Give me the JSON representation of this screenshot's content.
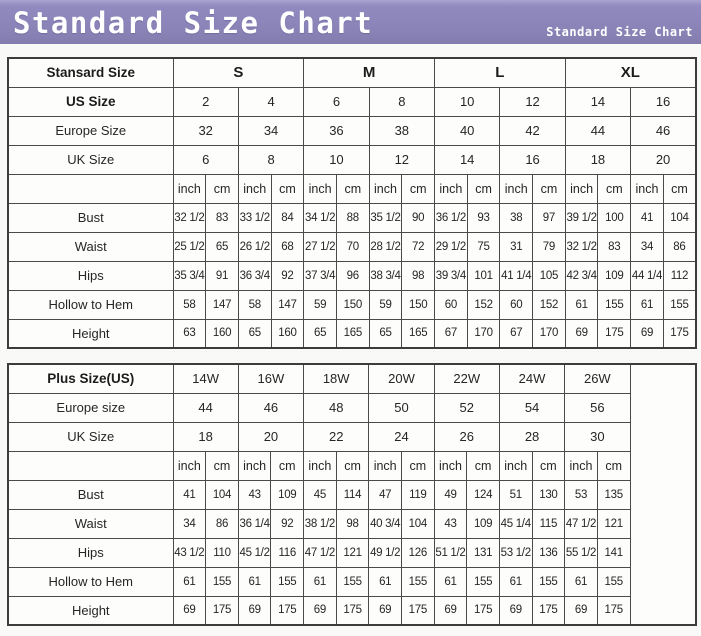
{
  "header": {
    "title": "Standard Size Chart",
    "subtitle": "Standard Size Chart"
  },
  "colors": {
    "header_bar": "#8a84b8",
    "table_border": "#3c3c3c",
    "cell_background": "#fdfdfc",
    "text": "#262626"
  },
  "tables": [
    {
      "id": "standard-size-table",
      "unit_cols": 16,
      "label_col_width": 165,
      "trailing_empty_col": false,
      "empty_col_width": 0,
      "rows": [
        {
          "label": "Stansard Size",
          "bold": true,
          "colspan": 4,
          "cells_bold": true,
          "cells": [
            "S",
            "M",
            "L",
            "XL"
          ]
        },
        {
          "label": "US Size",
          "bold": true,
          "colspan": 2,
          "cells": [
            "2",
            "4",
            "6",
            "8",
            "10",
            "12",
            "14",
            "16"
          ]
        },
        {
          "label": "Europe Size",
          "bold": false,
          "colspan": 2,
          "cells": [
            "32",
            "34",
            "36",
            "38",
            "40",
            "42",
            "44",
            "46"
          ]
        },
        {
          "label": "UK Size",
          "bold": false,
          "colspan": 2,
          "cells": [
            "6",
            "8",
            "10",
            "12",
            "14",
            "16",
            "18",
            "20"
          ]
        },
        {
          "label": "",
          "bold": false,
          "colspan": 1,
          "unit_row": true,
          "cells": [
            "inch",
            "cm",
            "inch",
            "cm",
            "inch",
            "cm",
            "inch",
            "cm",
            "inch",
            "cm",
            "inch",
            "cm",
            "inch",
            "cm",
            "inch",
            "cm"
          ]
        },
        {
          "label": "Bust",
          "bold": false,
          "colspan": 1,
          "cells": [
            "32 1/2",
            "83",
            "33 1/2",
            "84",
            "34 1/2",
            "88",
            "35 1/2",
            "90",
            "36 1/2",
            "93",
            "38",
            "97",
            "39 1/2",
            "100",
            "41",
            "104"
          ]
        },
        {
          "label": "Waist",
          "bold": false,
          "colspan": 1,
          "cells": [
            "25 1/2",
            "65",
            "26 1/2",
            "68",
            "27 1/2",
            "70",
            "28 1/2",
            "72",
            "29 1/2",
            "75",
            "31",
            "79",
            "32 1/2",
            "83",
            "34",
            "86"
          ]
        },
        {
          "label": "Hips",
          "bold": false,
          "colspan": 1,
          "cells": [
            "35 3/4",
            "91",
            "36 3/4",
            "92",
            "37 3/4",
            "96",
            "38 3/4",
            "98",
            "39 3/4",
            "101",
            "41 1/4",
            "105",
            "42 3/4",
            "109",
            "44 1/4",
            "112"
          ]
        },
        {
          "label": "Hollow to Hem",
          "bold": false,
          "colspan": 1,
          "cells": [
            "58",
            "147",
            "58",
            "147",
            "59",
            "150",
            "59",
            "150",
            "60",
            "152",
            "60",
            "152",
            "61",
            "155",
            "61",
            "155"
          ]
        },
        {
          "label": "Height",
          "bold": false,
          "colspan": 1,
          "cells": [
            "63",
            "160",
            "65",
            "160",
            "65",
            "165",
            "65",
            "165",
            "67",
            "170",
            "67",
            "170",
            "69",
            "175",
            "69",
            "175"
          ]
        }
      ]
    },
    {
      "id": "plus-size-table",
      "unit_cols": 14,
      "label_col_width": 165,
      "trailing_empty_col": true,
      "empty_col_width": 66,
      "rows": [
        {
          "label": "Plus Size(US)",
          "bold": true,
          "colspan": 2,
          "cells": [
            "14W",
            "16W",
            "18W",
            "20W",
            "22W",
            "24W",
            "26W"
          ]
        },
        {
          "label": "Europe size",
          "bold": false,
          "colspan": 2,
          "cells": [
            "44",
            "46",
            "48",
            "50",
            "52",
            "54",
            "56"
          ]
        },
        {
          "label": "UK Size",
          "bold": false,
          "colspan": 2,
          "cells": [
            "18",
            "20",
            "22",
            "24",
            "26",
            "28",
            "30"
          ]
        },
        {
          "label": "",
          "bold": false,
          "colspan": 1,
          "unit_row": true,
          "cells": [
            "inch",
            "cm",
            "inch",
            "cm",
            "inch",
            "cm",
            "inch",
            "cm",
            "inch",
            "cm",
            "inch",
            "cm",
            "inch",
            "cm"
          ]
        },
        {
          "label": "Bust",
          "bold": false,
          "colspan": 1,
          "cells": [
            "41",
            "104",
            "43",
            "109",
            "45",
            "114",
            "47",
            "119",
            "49",
            "124",
            "51",
            "130",
            "53",
            "135"
          ]
        },
        {
          "label": "Waist",
          "bold": false,
          "colspan": 1,
          "cells": [
            "34",
            "86",
            "36 1/4",
            "92",
            "38 1/2",
            "98",
            "40 3/4",
            "104",
            "43",
            "109",
            "45 1/4",
            "115",
            "47 1/2",
            "121"
          ]
        },
        {
          "label": "Hips",
          "bold": false,
          "colspan": 1,
          "cells": [
            "43 1/2",
            "110",
            "45 1/2",
            "116",
            "47 1/2",
            "121",
            "49 1/2",
            "126",
            "51 1/2",
            "131",
            "53 1/2",
            "136",
            "55 1/2",
            "141"
          ]
        },
        {
          "label": "Hollow to Hem",
          "bold": false,
          "colspan": 1,
          "cells": [
            "61",
            "155",
            "61",
            "155",
            "61",
            "155",
            "61",
            "155",
            "61",
            "155",
            "61",
            "155",
            "61",
            "155"
          ]
        },
        {
          "label": "Height",
          "bold": false,
          "colspan": 1,
          "cells": [
            "69",
            "175",
            "69",
            "175",
            "69",
            "175",
            "69",
            "175",
            "69",
            "175",
            "69",
            "175",
            "69",
            "175"
          ]
        }
      ]
    }
  ]
}
